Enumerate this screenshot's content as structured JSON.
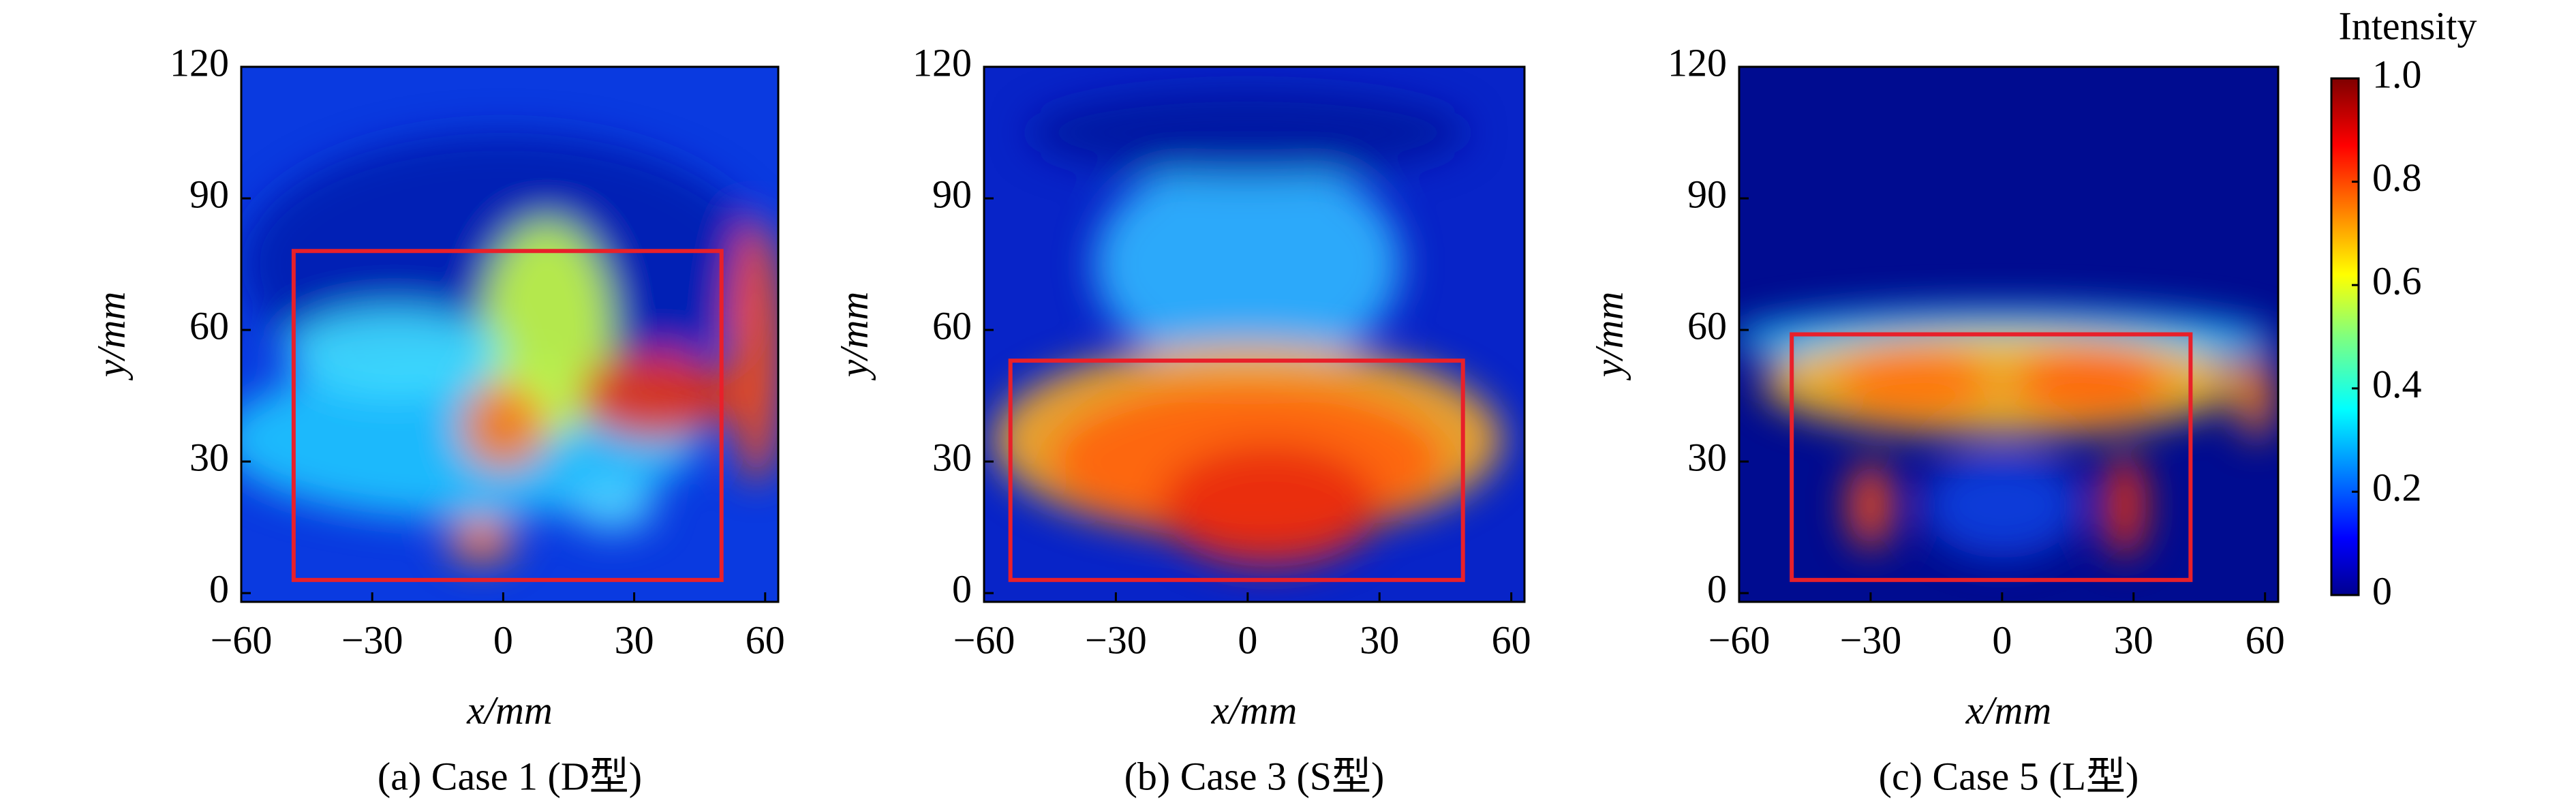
{
  "chart_data": [
    {
      "type": "heatmap",
      "caption": "(a) Case 1 (D型)",
      "xlabel": "x/mm",
      "ylabel": "y/mm",
      "xlim": [
        -60,
        63
      ],
      "ylim": [
        -2,
        120
      ],
      "xticks": [
        {
          "value": -60,
          "label": "−60"
        },
        {
          "value": -30,
          "label": "−30"
        },
        0,
        30,
        60
      ],
      "yticks": [
        0,
        30,
        60,
        90,
        120
      ],
      "box": {
        "x": [
          -48,
          50
        ],
        "y": [
          3,
          78
        ],
        "color": "#e8202a"
      }
    },
    {
      "type": "heatmap",
      "caption": "(b) Case 3 (S型)",
      "xlabel": "x/mm",
      "ylabel": "y/mm",
      "xlim": [
        -60,
        63
      ],
      "ylim": [
        -2,
        120
      ],
      "xticks": [
        {
          "value": -60,
          "label": "−60"
        },
        {
          "value": -30,
          "label": "−30"
        },
        0,
        30,
        60
      ],
      "yticks": [
        0,
        30,
        60,
        90,
        120
      ],
      "box": {
        "x": [
          -54,
          49
        ],
        "y": [
          3,
          53
        ],
        "color": "#e8202a"
      }
    },
    {
      "type": "heatmap",
      "caption": "(c) Case 5 (L型)",
      "xlabel": "x/mm",
      "ylabel": "y/mm",
      "xlim": [
        -60,
        63
      ],
      "ylim": [
        -2,
        120
      ],
      "xticks": [
        {
          "value": -60,
          "label": "−60"
        },
        {
          "value": -30,
          "label": "−30"
        },
        0,
        30,
        60
      ],
      "yticks": [
        0,
        30,
        60,
        90,
        120
      ],
      "box": {
        "x": [
          -48,
          43
        ],
        "y": [
          3,
          59
        ],
        "color": "#e8202a"
      }
    },
    {
      "type": "colorbar",
      "label": "Intensity",
      "clim": [
        0,
        1
      ],
      "ticks": [
        0,
        {
          "value": 0.2,
          "label": "0.2"
        },
        {
          "value": 0.4,
          "label": "0.4"
        },
        {
          "value": 0.6,
          "label": "0.6"
        },
        {
          "value": 0.8,
          "label": "0.8"
        },
        {
          "value": 1,
          "label": "1.0"
        }
      ]
    }
  ]
}
